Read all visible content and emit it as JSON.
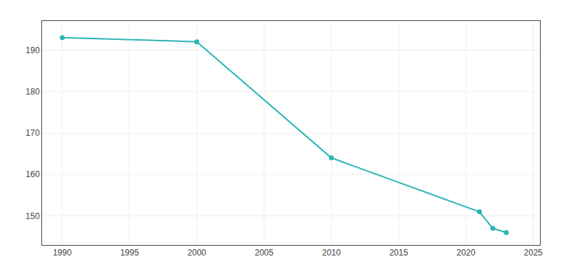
{
  "chart_data": {
    "type": "line",
    "x": [
      1990,
      2000,
      2010,
      2021,
      2022,
      2023
    ],
    "values": [
      193,
      192,
      164,
      151,
      147,
      146
    ],
    "color": "#2ab5b5",
    "marker": "circle",
    "xlim": [
      1988.5,
      2025.5
    ],
    "ylim": [
      143,
      197
    ],
    "xticks": [
      1990,
      1995,
      2000,
      2005,
      2010,
      2015,
      2020,
      2025
    ],
    "yticks": [
      150,
      160,
      170,
      180,
      190
    ],
    "grid": true
  }
}
